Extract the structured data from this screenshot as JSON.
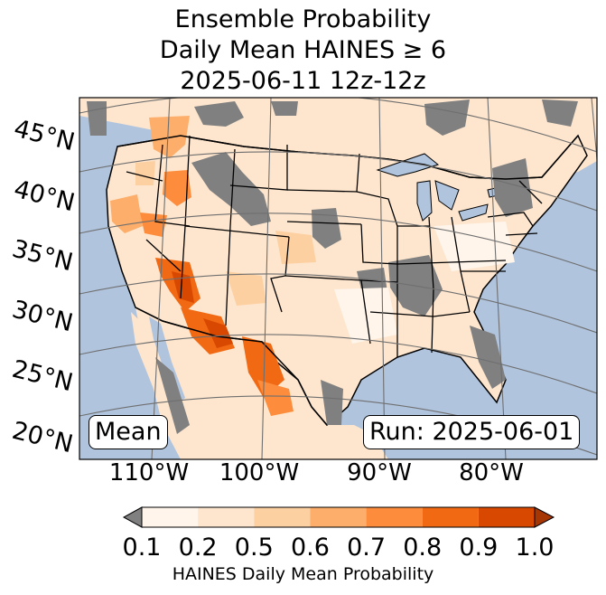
{
  "title": {
    "line1": "Ensemble Probability",
    "line2": "Daily Mean HAINES ≥ 6",
    "line3": "2025-06-11 12z-12z"
  },
  "map": {
    "latitude_labels": [
      "45°N",
      "40°N",
      "35°N",
      "30°N",
      "25°N",
      "20°N"
    ],
    "longitude_labels": [
      "110°W",
      "100°W",
      "90°W",
      "80°W"
    ],
    "ocean_color": "#b0c4de",
    "land_base_color": "#fee6ce",
    "no_data_color": "#808080"
  },
  "badges": {
    "left": "Mean",
    "right": "Run: 2025-06-01"
  },
  "colorbar": {
    "label": "HAINES Daily Mean Probability",
    "ticks": [
      "0.1",
      "0.2",
      "0.5",
      "0.6",
      "0.7",
      "0.8",
      "0.9",
      "1.0"
    ],
    "bin_colors": [
      "#fff5eb",
      "#fee6ce",
      "#fdd0a2",
      "#fdae6b",
      "#fd8d3c",
      "#f16913",
      "#d94801"
    ],
    "under_color": "#808080",
    "over_color": "#a63603"
  }
}
